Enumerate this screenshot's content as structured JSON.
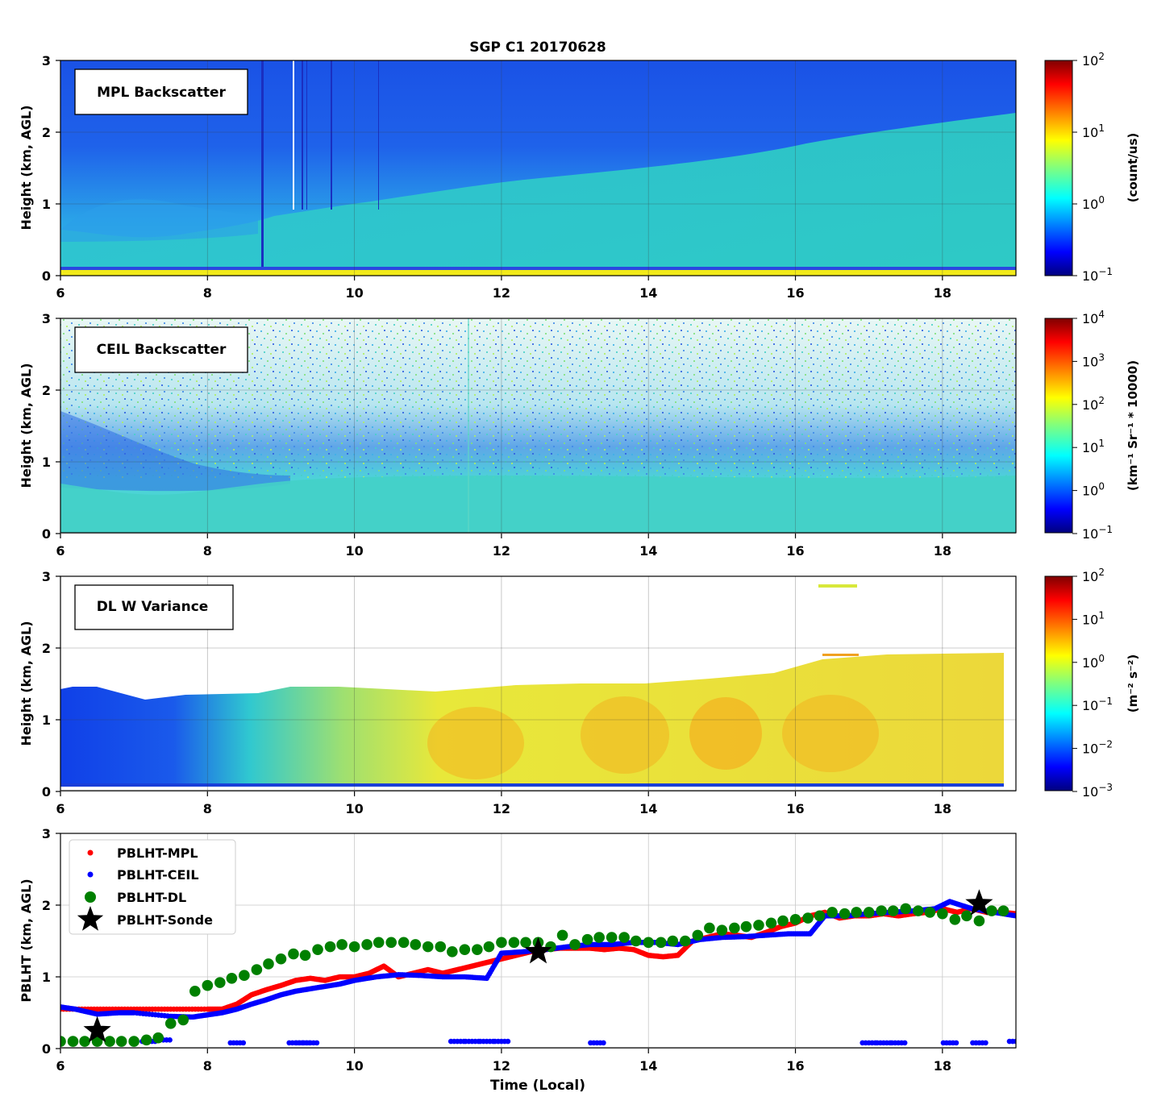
{
  "figure": {
    "title": "SGP C1 20170628",
    "xlabel": "Time (Local)",
    "x_ticks": [
      "6",
      "8",
      "10",
      "12",
      "14",
      "16",
      "18"
    ],
    "y_ticks": [
      "0",
      "1",
      "2",
      "3"
    ]
  },
  "panels": [
    {
      "label": "MPL Backscatter",
      "ylabel": "Height (km, AGL)",
      "colorbar": {
        "label": "(count/us)",
        "ticks": [
          "10",
          "10",
          "10",
          "10"
        ],
        "exps": [
          "2",
          "1",
          "0",
          "−1"
        ]
      }
    },
    {
      "label": "CEIL Backscatter",
      "ylabel": "Height (km, AGL)",
      "colorbar": {
        "label": "(km⁻¹ Sr⁻¹ * 10000)",
        "ticks": [
          "10",
          "10",
          "10",
          "10",
          "10",
          "10"
        ],
        "exps": [
          "4",
          "3",
          "2",
          "1",
          "0",
          "−1"
        ]
      }
    },
    {
      "label": "DL W Variance",
      "ylabel": "Height (km, AGL)",
      "colorbar": {
        "label": "(m⁻² s⁻²)",
        "ticks": [
          "10",
          "10",
          "10",
          "10",
          "10",
          "10"
        ],
        "exps": [
          "2",
          "1",
          "0",
          "−1",
          "−2",
          "−3"
        ]
      }
    },
    {
      "ylabel": "PBLHT (km, AGL)",
      "legend": [
        "PBLHT-MPL",
        "PBLHT-CEIL",
        "PBLHT-DL",
        "PBLHT-Sonde"
      ]
    }
  ],
  "chart_data": [
    {
      "type": "heatmap",
      "title": "SGP C1 20170628",
      "panel_label": "MPL Backscatter",
      "ylabel": "Height (km, AGL)",
      "xlim": [
        6,
        19
      ],
      "ylim": [
        0,
        3
      ],
      "colorbar": {
        "label": "(count/us)",
        "scale": "log",
        "range": [
          0.1,
          100
        ]
      },
      "colormap": "jet",
      "grid": true
    },
    {
      "type": "heatmap",
      "panel_label": "CEIL Backscatter",
      "ylabel": "Height (km, AGL)",
      "xlim": [
        6,
        19
      ],
      "ylim": [
        0,
        3
      ],
      "colorbar": {
        "label": "(km⁻¹ Sr⁻¹ * 10000)",
        "scale": "log",
        "range": [
          0.1,
          10000
        ]
      },
      "colormap": "jet",
      "grid": true
    },
    {
      "type": "heatmap",
      "panel_label": "DL W Variance",
      "ylabel": "Height (km, AGL)",
      "xlim": [
        6,
        19
      ],
      "ylim": [
        0,
        3
      ],
      "colorbar": {
        "label": "(m⁻² s⁻²)",
        "scale": "log",
        "range": [
          0.001,
          100
        ]
      },
      "colormap": "jet",
      "grid": true
    },
    {
      "type": "scatter",
      "xlabel": "Time (Local)",
      "ylabel": "PBLHT (km, AGL)",
      "xlim": [
        6,
        19
      ],
      "ylim": [
        0,
        3
      ],
      "grid": true,
      "legend_position": "upper-left",
      "series": [
        {
          "name": "PBLHT-MPL",
          "color": "#ff0000",
          "marker": "small-dot",
          "x": [
            6.0,
            6.5,
            7.0,
            7.5,
            8.0,
            8.2,
            8.4,
            8.6,
            8.8,
            9.0,
            9.2,
            9.4,
            9.6,
            9.8,
            10.0,
            10.2,
            10.4,
            10.6,
            10.8,
            11.0,
            11.2,
            11.4,
            11.6,
            11.8,
            12.0,
            12.2,
            12.4,
            12.6,
            12.8,
            13.0,
            13.2,
            13.4,
            13.6,
            13.8,
            14.0,
            14.2,
            14.4,
            14.6,
            14.8,
            15.0,
            15.2,
            15.4,
            15.6,
            15.8,
            16.0,
            16.2,
            16.4,
            16.6,
            16.8,
            17.0,
            17.2,
            17.4,
            17.6,
            17.8,
            18.0,
            18.2,
            18.4,
            18.6,
            18.8,
            19.0
          ],
          "y": [
            0.55,
            0.55,
            0.55,
            0.55,
            0.55,
            0.55,
            0.62,
            0.75,
            0.82,
            0.88,
            0.95,
            0.98,
            0.95,
            1.0,
            1.0,
            1.05,
            1.15,
            1.0,
            1.05,
            1.1,
            1.05,
            1.1,
            1.15,
            1.2,
            1.25,
            1.3,
            1.35,
            1.38,
            1.4,
            1.4,
            1.4,
            1.38,
            1.4,
            1.38,
            1.3,
            1.28,
            1.3,
            1.5,
            1.55,
            1.6,
            1.58,
            1.55,
            1.62,
            1.7,
            1.75,
            1.85,
            1.9,
            1.82,
            1.85,
            1.85,
            1.88,
            1.85,
            1.88,
            1.9,
            1.95,
            1.9,
            1.95,
            1.9,
            1.9,
            1.88
          ]
        },
        {
          "name": "PBLHT-CEIL",
          "color": "#0000ff",
          "marker": "small-dot",
          "x": [
            6.0,
            6.2,
            6.5,
            6.8,
            7.0,
            7.5,
            7.8,
            8.0,
            8.2,
            8.4,
            8.6,
            8.8,
            9.0,
            9.2,
            9.5,
            9.8,
            10.0,
            10.3,
            10.6,
            10.9,
            11.2,
            11.5,
            11.8,
            12.0,
            12.3,
            12.6,
            12.9,
            13.2,
            13.5,
            13.8,
            14.1,
            14.4,
            14.7,
            15.0,
            15.3,
            15.6,
            15.9,
            16.2,
            16.4,
            16.7,
            17.0,
            17.3,
            17.6,
            17.9,
            18.1,
            18.4,
            18.7,
            19.0
          ],
          "y": [
            0.58,
            0.55,
            0.48,
            0.5,
            0.5,
            0.45,
            0.44,
            0.47,
            0.5,
            0.55,
            0.62,
            0.68,
            0.75,
            0.8,
            0.85,
            0.9,
            0.95,
            1.0,
            1.03,
            1.02,
            1.0,
            1.0,
            0.98,
            1.33,
            1.35,
            1.38,
            1.42,
            1.45,
            1.45,
            1.48,
            1.48,
            1.45,
            1.52,
            1.55,
            1.56,
            1.58,
            1.6,
            1.6,
            1.85,
            1.85,
            1.88,
            1.9,
            1.92,
            1.95,
            2.05,
            1.95,
            1.9,
            1.85
          ]
        },
        {
          "name": "PBLHT-CEIL (low detections)",
          "color": "#0000ff",
          "marker": "small-dot",
          "x": [
            7.2,
            7.4,
            8.4,
            9.2,
            9.3,
            9.4,
            11.4,
            11.6,
            11.8,
            12.0,
            13.3,
            17.0,
            17.2,
            17.4,
            18.1,
            18.5,
            19.0
          ],
          "y": [
            0.1,
            0.12,
            0.08,
            0.08,
            0.08,
            0.08,
            0.1,
            0.1,
            0.1,
            0.1,
            0.08,
            0.08,
            0.08,
            0.08,
            0.08,
            0.08,
            0.1
          ]
        },
        {
          "name": "PBLHT-DL",
          "color": "#008000",
          "marker": "large-dot",
          "x": [
            6.0,
            6.17,
            6.33,
            6.5,
            6.67,
            6.83,
            7.0,
            7.17,
            7.33,
            7.5,
            7.67,
            7.83,
            8.0,
            8.17,
            8.33,
            8.5,
            8.67,
            8.83,
            9.0,
            9.17,
            9.33,
            9.5,
            9.67,
            9.83,
            10.0,
            10.17,
            10.33,
            10.5,
            10.67,
            10.83,
            11.0,
            11.17,
            11.33,
            11.5,
            11.67,
            11.83,
            12.0,
            12.17,
            12.33,
            12.5,
            12.67,
            12.83,
            13.0,
            13.17,
            13.33,
            13.5,
            13.67,
            13.83,
            14.0,
            14.17,
            14.33,
            14.5,
            14.67,
            14.83,
            15.0,
            15.17,
            15.33,
            15.5,
            15.67,
            15.83,
            16.0,
            16.17,
            16.33,
            16.5,
            16.67,
            16.83,
            17.0,
            17.17,
            17.33,
            17.5,
            17.67,
            17.83,
            18.0,
            18.17,
            18.33,
            18.5,
            18.67,
            18.83
          ],
          "y": [
            0.1,
            0.1,
            0.1,
            0.1,
            0.1,
            0.1,
            0.1,
            0.12,
            0.15,
            0.35,
            0.4,
            0.8,
            0.88,
            0.92,
            0.98,
            1.02,
            1.1,
            1.18,
            1.25,
            1.32,
            1.3,
            1.38,
            1.42,
            1.45,
            1.42,
            1.45,
            1.48,
            1.48,
            1.48,
            1.45,
            1.42,
            1.42,
            1.35,
            1.38,
            1.38,
            1.42,
            1.48,
            1.48,
            1.48,
            1.48,
            1.42,
            1.58,
            1.45,
            1.52,
            1.55,
            1.55,
            1.55,
            1.5,
            1.48,
            1.48,
            1.5,
            1.5,
            1.58,
            1.68,
            1.65,
            1.68,
            1.7,
            1.72,
            1.75,
            1.78,
            1.8,
            1.82,
            1.85,
            1.9,
            1.88,
            1.9,
            1.9,
            1.92,
            1.92,
            1.95,
            1.92,
            1.9,
            1.88,
            1.8,
            1.85,
            1.78,
            1.92,
            1.92
          ]
        },
        {
          "name": "PBLHT-Sonde",
          "color": "#000000",
          "marker": "star",
          "x": [
            6.5,
            12.5,
            18.5
          ],
          "y": [
            0.25,
            1.35,
            2.02
          ]
        }
      ]
    }
  ]
}
